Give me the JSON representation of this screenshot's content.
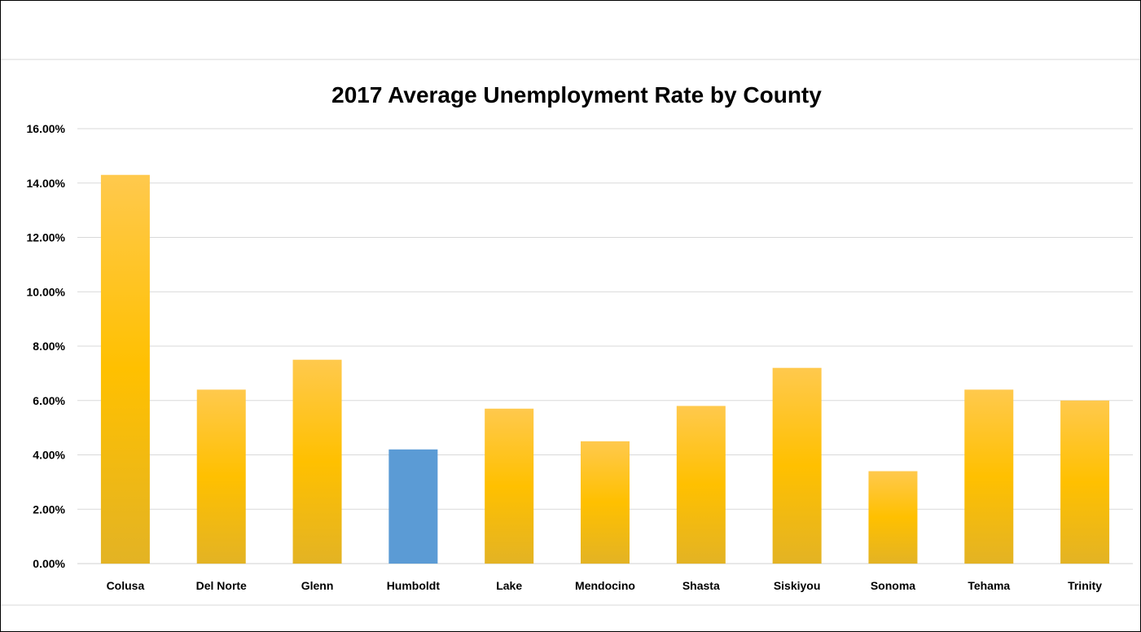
{
  "chart_data": {
    "type": "bar",
    "title": "2017 Average Unemployment Rate by County",
    "xlabel": "",
    "ylabel": "",
    "categories": [
      "Colusa",
      "Del Norte",
      "Glenn",
      "Humboldt",
      "Lake",
      "Mendocino",
      "Shasta",
      "Siskiyou",
      "Sonoma",
      "Tehama",
      "Trinity"
    ],
    "values": [
      14.3,
      6.4,
      7.5,
      4.2,
      5.7,
      4.5,
      5.8,
      7.2,
      3.4,
      6.4,
      6.0
    ],
    "highlight_category": "Humboldt",
    "ylim": [
      0,
      16
    ],
    "ytick_step": 2,
    "ytick_labels": [
      "0.00%",
      "2.00%",
      "4.00%",
      "6.00%",
      "8.00%",
      "10.00%",
      "12.00%",
      "14.00%",
      "16.00%"
    ],
    "grid": true,
    "legend": "none",
    "colors": {
      "bar_top": "#ffc94d",
      "bar_mid": "#ffc000",
      "bar_bottom": "#e3b324",
      "highlight": "#5b9bd5"
    }
  }
}
